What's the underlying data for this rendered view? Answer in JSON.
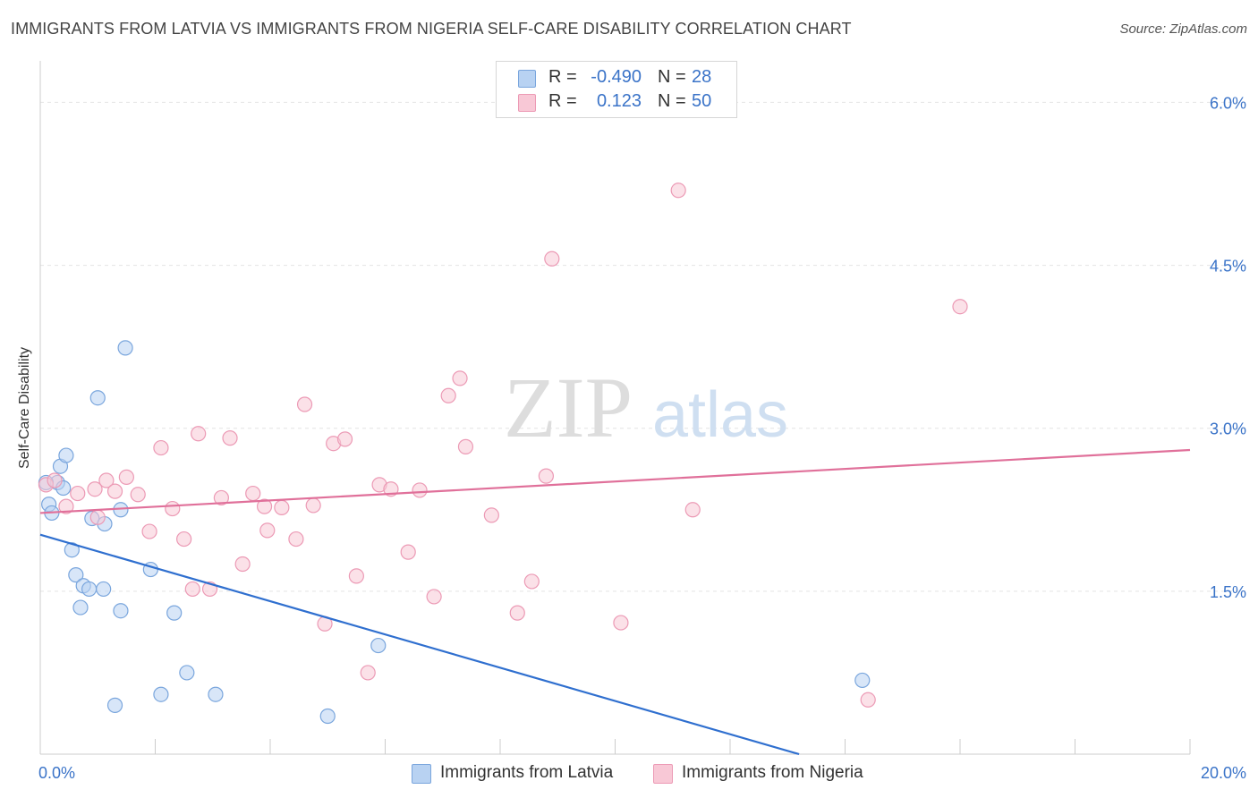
{
  "header": {
    "title": "IMMIGRANTS FROM LATVIA VS IMMIGRANTS FROM NIGERIA SELF-CARE DISABILITY CORRELATION CHART",
    "source_label": "Source: ZipAtlas.com"
  },
  "watermark": {
    "zip": "ZIP",
    "atlas": "atlas"
  },
  "stats": {
    "latvia": {
      "r_label": "R =",
      "r_value": "-0.490",
      "n_label": "N =",
      "n_value": "28"
    },
    "nigeria": {
      "r_label": "R =",
      "r_value": "0.123",
      "n_label": "N =",
      "n_value": "50"
    }
  },
  "legend": {
    "latvia": "Immigrants from Latvia",
    "nigeria": "Immigrants from Nigeria"
  },
  "colors": {
    "latvia_fill": "#b8d2f2",
    "latvia_stroke": "#7aa6dd",
    "latvia_line": "#2f6fcf",
    "nigeria_fill": "#f8c8d6",
    "nigeria_stroke": "#ec9ab5",
    "nigeria_line": "#e0709a",
    "tick_label": "#3a73c8"
  },
  "chart_data": {
    "type": "scatter",
    "title": "IMMIGRANTS FROM LATVIA VS IMMIGRANTS FROM NIGERIA SELF-CARE DISABILITY CORRELATION CHART",
    "xlabel": "",
    "ylabel": "Self-Care Disability",
    "xlim": [
      0,
      20
    ],
    "ylim": [
      0,
      6.3
    ],
    "x_tick_labels": [
      "0.0%",
      "20.0%"
    ],
    "y_ticks": [
      1.5,
      3.0,
      4.5,
      6.0
    ],
    "y_tick_labels": [
      "1.5%",
      "3.0%",
      "4.5%",
      "6.0%"
    ],
    "grid": "horizontal dashed",
    "legend_position": "bottom-center",
    "series": [
      {
        "name": "Immigrants from Latvia",
        "points": [
          [
            0.15,
            2.3
          ],
          [
            0.2,
            2.22
          ],
          [
            0.3,
            2.5
          ],
          [
            0.35,
            2.65
          ],
          [
            0.4,
            2.45
          ],
          [
            0.45,
            2.75
          ],
          [
            0.55,
            1.88
          ],
          [
            0.62,
            1.65
          ],
          [
            0.7,
            1.35
          ],
          [
            0.75,
            1.55
          ],
          [
            0.85,
            1.52
          ],
          [
            0.9,
            2.17
          ],
          [
            1.1,
            1.52
          ],
          [
            1.12,
            2.12
          ],
          [
            1.0,
            3.28
          ],
          [
            1.4,
            1.32
          ],
          [
            1.4,
            2.25
          ],
          [
            1.48,
            3.74
          ],
          [
            1.3,
            0.45
          ],
          [
            1.92,
            1.7
          ],
          [
            2.1,
            0.55
          ],
          [
            2.33,
            1.3
          ],
          [
            2.55,
            0.75
          ],
          [
            3.05,
            0.55
          ],
          [
            5.0,
            0.35
          ],
          [
            5.88,
            1.0
          ],
          [
            14.3,
            0.68
          ],
          [
            0.1,
            2.5
          ]
        ]
      },
      {
        "name": "Immigrants from Nigeria",
        "points": [
          [
            0.1,
            2.48
          ],
          [
            0.25,
            2.52
          ],
          [
            0.45,
            2.28
          ],
          [
            0.65,
            2.4
          ],
          [
            0.95,
            2.44
          ],
          [
            1.0,
            2.18
          ],
          [
            1.15,
            2.52
          ],
          [
            1.3,
            2.42
          ],
          [
            1.5,
            2.55
          ],
          [
            1.7,
            2.39
          ],
          [
            1.9,
            2.05
          ],
          [
            2.1,
            2.82
          ],
          [
            2.3,
            2.26
          ],
          [
            2.5,
            1.98
          ],
          [
            2.65,
            1.52
          ],
          [
            2.75,
            2.95
          ],
          [
            2.95,
            1.52
          ],
          [
            3.15,
            2.36
          ],
          [
            3.3,
            2.91
          ],
          [
            3.52,
            1.75
          ],
          [
            3.7,
            2.4
          ],
          [
            3.9,
            2.28
          ],
          [
            3.95,
            2.06
          ],
          [
            4.2,
            2.27
          ],
          [
            4.45,
            1.98
          ],
          [
            4.6,
            3.22
          ],
          [
            4.75,
            2.29
          ],
          [
            4.95,
            1.2
          ],
          [
            5.1,
            2.86
          ],
          [
            5.3,
            2.9
          ],
          [
            5.5,
            1.64
          ],
          [
            5.7,
            0.75
          ],
          [
            5.9,
            2.48
          ],
          [
            6.1,
            2.44
          ],
          [
            6.4,
            1.86
          ],
          [
            6.6,
            2.43
          ],
          [
            6.85,
            1.45
          ],
          [
            7.1,
            3.3
          ],
          [
            7.3,
            3.46
          ],
          [
            7.4,
            2.83
          ],
          [
            7.85,
            2.2
          ],
          [
            8.3,
            1.3
          ],
          [
            8.55,
            1.59
          ],
          [
            8.8,
            2.56
          ],
          [
            8.9,
            4.56
          ],
          [
            10.1,
            1.21
          ],
          [
            11.1,
            5.19
          ],
          [
            11.35,
            2.25
          ],
          [
            14.4,
            0.5
          ],
          [
            16.0,
            4.12
          ]
        ]
      }
    ],
    "trend_lines": [
      {
        "name": "Immigrants from Latvia",
        "x": [
          0,
          13.2
        ],
        "y": [
          2.02,
          0
        ]
      },
      {
        "name": "Immigrants from Nigeria",
        "x": [
          0,
          20
        ],
        "y": [
          2.22,
          2.8
        ]
      }
    ]
  }
}
